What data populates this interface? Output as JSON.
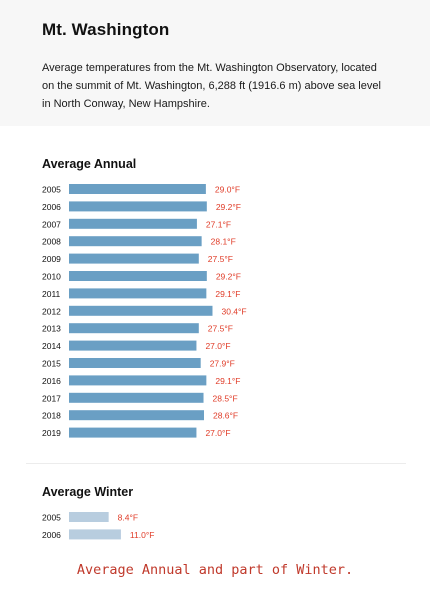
{
  "header": {
    "title": "Mt. Washington",
    "description": "Average temperatures from the Mt. Washington Observatory, located on the summit of Mt. Washington, 6,288 ft (1916.6 m) above sea level in North Conway, New Hampshire."
  },
  "caption": "Average Annual and part of Winter.",
  "colors": {
    "annual_bar": "#6a9fc4",
    "winter_bar": "#b8cddf",
    "value_label": "#e03c28"
  },
  "chart_data": [
    {
      "type": "bar",
      "orientation": "horizontal",
      "title": "Average Annual",
      "categories": [
        "2005",
        "2006",
        "2007",
        "2008",
        "2009",
        "2010",
        "2011",
        "2012",
        "2013",
        "2014",
        "2015",
        "2016",
        "2017",
        "2018",
        "2019"
      ],
      "values": [
        29.0,
        29.2,
        27.1,
        28.1,
        27.5,
        29.2,
        29.1,
        30.4,
        27.5,
        27.0,
        27.9,
        29.1,
        28.5,
        28.6,
        27.0
      ],
      "labels": [
        "29.0°F",
        "29.2°F",
        "27.1°F",
        "28.1°F",
        "27.5°F",
        "29.2°F",
        "29.1°F",
        "30.4°F",
        "27.5°F",
        "27.0°F",
        "27.9°F",
        "29.1°F",
        "28.5°F",
        "28.6°F",
        "27.0°F"
      ],
      "unit": "°F",
      "grid": false
    },
    {
      "type": "bar",
      "orientation": "horizontal",
      "title": "Average Winter",
      "categories": [
        "2005",
        "2006"
      ],
      "values": [
        8.4,
        11.0
      ],
      "labels": [
        "8.4°F",
        "11.0°F"
      ],
      "unit": "°F",
      "grid": false
    }
  ]
}
